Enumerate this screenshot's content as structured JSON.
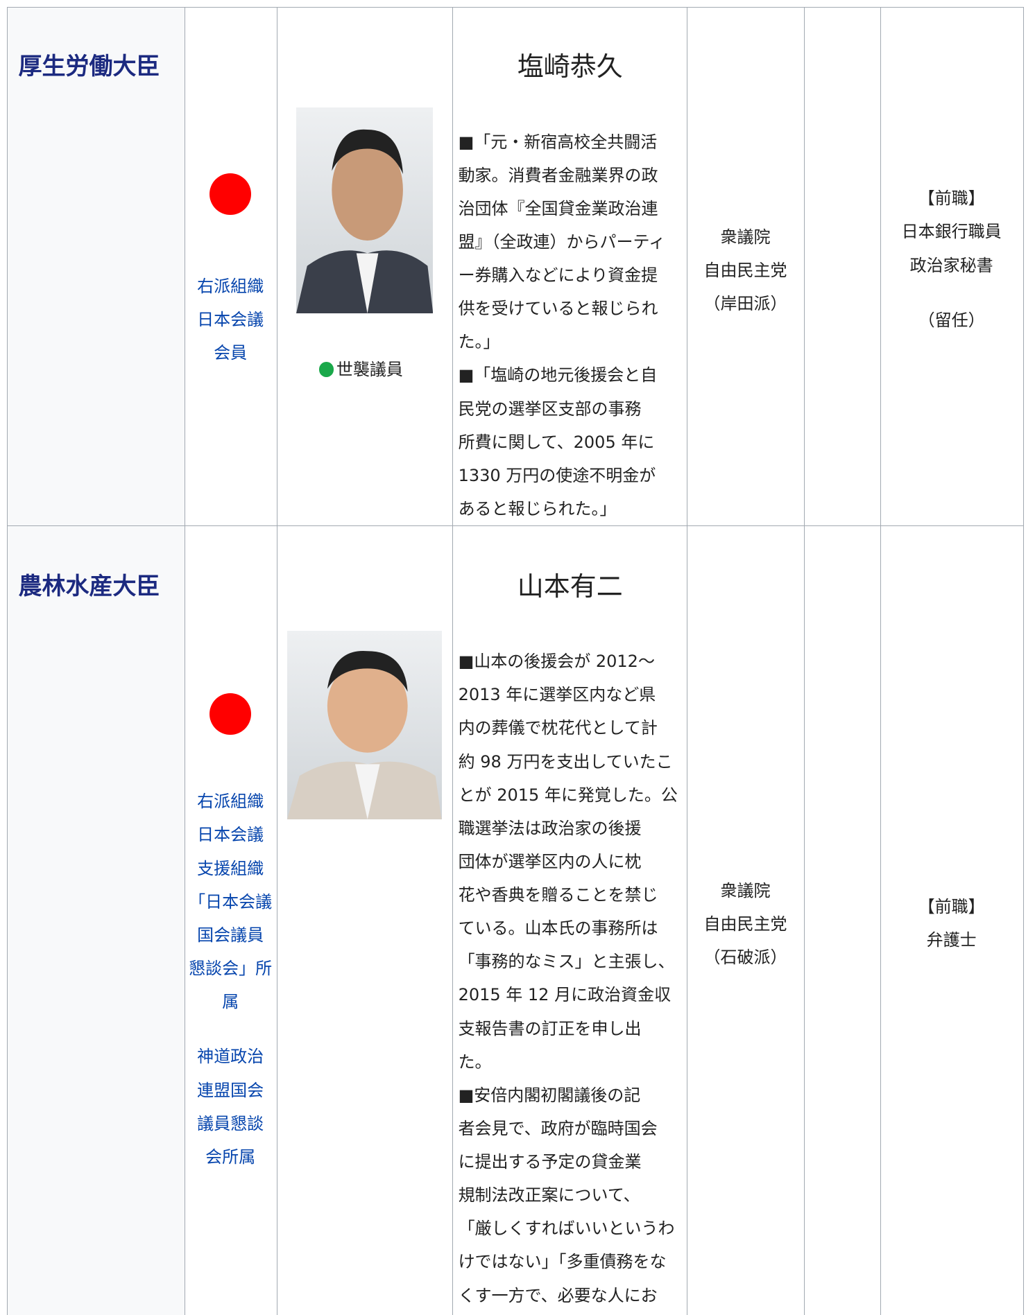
{
  "rows": [
    {
      "ministry": "厚生労働大臣",
      "org_groups": [
        [
          "右派組織",
          "日本会議",
          "会員"
        ]
      ],
      "hereditary": "世襲議員",
      "name": "塩崎恭久",
      "description_lines": [
        "■「元・新宿高校全共闘活",
        "動家。消費者金融業界の政",
        "治団体『全国貸金業政治連",
        "盟』（全政連）からパーティ",
        "ー券購入などにより資金提",
        "供を受けていると報じられ",
        "た。」",
        "■「塩崎の地元後援会と自",
        "民党の選挙区支部の事務",
        "所費に関して、2005 年に",
        "1330 万円の使途不明金が",
        "あると報じられた。」"
      ],
      "affiliation": [
        "衆議院",
        "自由民主党",
        "（岸田派）"
      ],
      "career": [
        "【前職】",
        "日本銀行職員",
        "政治家秘書"
      ],
      "note": "（留任）"
    },
    {
      "ministry": "農林水産大臣",
      "org_groups": [
        [
          "右派組織",
          "日本会議",
          "支援組織",
          "「日本会議",
          "国会議員",
          "懇談会」所",
          "属"
        ],
        [
          "神道政治",
          "連盟国会",
          "議員懇談",
          "会所属"
        ]
      ],
      "name": "山本有二",
      "description_lines": [
        "■山本の後援会が 2012～",
        "2013 年に選挙区内など県",
        "内の葬儀で枕花代として計",
        "約 98 万円を支出していたこ",
        "とが 2015 年に発覚した。公",
        "職選挙法は政治家の後援",
        "団体が選挙区内の人に枕",
        "花や香典を贈ることを禁じ",
        "ている。山本氏の事務所は",
        "「事務的なミス」と主張し、",
        "2015 年 12 月に政治資金収",
        "支報告書の訂正を申し出",
        "た。",
        "■安倍内閣初閣議後の記",
        "者会見で、政府が臨時国会",
        "に提出する予定の貸金業",
        "規制法改正案について、",
        "「厳しくすればいいというわ",
        "けではない」「多重債務をな",
        "くす一方で、必要な人にお"
      ],
      "affiliation": [
        "衆議院",
        "自由民主党",
        "（石破派）"
      ],
      "career": [
        "【前職】",
        "弁護士"
      ]
    }
  ]
}
